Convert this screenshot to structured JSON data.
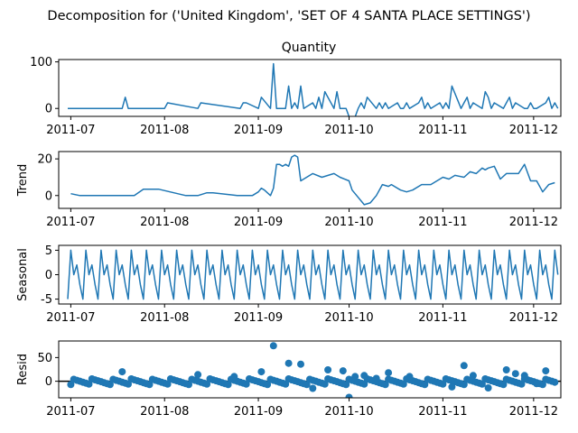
{
  "suptitle": "Decomposition for ('United Kingdom', 'SET OF 4 SANTA PLACE SETTINGS')",
  "x_tick_labels": [
    "2011-07",
    "2011-08",
    "2011-09",
    "2011-10",
    "2011-11",
    "2011-12"
  ],
  "series_color": "#1f77b4",
  "chart_data": [
    {
      "type": "line",
      "title": "Quantity",
      "ylabel": "",
      "ylim": [
        -17,
        105
      ],
      "yticks": [
        0,
        100
      ],
      "x": [
        "2011-06-30",
        "2011-07-18",
        "2011-07-19",
        "2011-07-20",
        "2011-08-01",
        "2011-08-02",
        "2011-08-12",
        "2011-08-13",
        "2011-08-26",
        "2011-08-27",
        "2011-08-28",
        "2011-09-01",
        "2011-09-02",
        "2011-09-05",
        "2011-09-06",
        "2011-09-07",
        "2011-09-10",
        "2011-09-11",
        "2011-09-12",
        "2011-09-13",
        "2011-09-14",
        "2011-09-15",
        "2011-09-16",
        "2011-09-19",
        "2011-09-20",
        "2011-09-21",
        "2011-09-22",
        "2011-09-23",
        "2011-09-26",
        "2011-09-27",
        "2011-09-28",
        "2011-09-30",
        "2011-10-02",
        "2011-10-04",
        "2011-10-05",
        "2011-10-06",
        "2011-10-07",
        "2011-10-10",
        "2011-10-11",
        "2011-10-12",
        "2011-10-13",
        "2011-10-14",
        "2011-10-17",
        "2011-10-18",
        "2011-10-19",
        "2011-10-20",
        "2011-10-21",
        "2011-10-24",
        "2011-10-25",
        "2011-10-26",
        "2011-10-27",
        "2011-10-28",
        "2011-10-31",
        "2011-11-01",
        "2011-11-02",
        "2011-11-03",
        "2011-11-04",
        "2011-11-07",
        "2011-11-08",
        "2011-11-09",
        "2011-11-10",
        "2011-11-11",
        "2011-11-14",
        "2011-11-15",
        "2011-11-16",
        "2011-11-17",
        "2011-11-18",
        "2011-11-21",
        "2011-11-22",
        "2011-11-23",
        "2011-11-24",
        "2011-11-25",
        "2011-11-28",
        "2011-11-29",
        "2011-11-30",
        "2011-12-01",
        "2011-12-02",
        "2011-12-05",
        "2011-12-06",
        "2011-12-07",
        "2011-12-08",
        "2011-12-09"
      ],
      "y": [
        0,
        0,
        24,
        0,
        0,
        12,
        0,
        12,
        0,
        12,
        12,
        0,
        24,
        0,
        96,
        0,
        0,
        48,
        0,
        12,
        0,
        48,
        0,
        12,
        0,
        24,
        0,
        36,
        0,
        36,
        0,
        0,
        -36,
        0,
        12,
        0,
        24,
        0,
        12,
        0,
        12,
        0,
        12,
        0,
        0,
        12,
        0,
        12,
        24,
        0,
        12,
        0,
        12,
        0,
        12,
        0,
        48,
        0,
        12,
        24,
        0,
        12,
        0,
        36,
        24,
        0,
        12,
        0,
        12,
        24,
        0,
        12,
        0,
        0,
        12,
        0,
        0,
        12,
        24,
        0,
        12,
        0
      ]
    },
    {
      "type": "line",
      "title": "",
      "ylabel": "Trend",
      "ylim": [
        -7,
        24
      ],
      "yticks": [
        0,
        20
      ],
      "x": [
        "2011-07-01",
        "2011-07-04",
        "2011-07-12",
        "2011-07-14",
        "2011-07-22",
        "2011-07-25",
        "2011-07-26",
        "2011-07-30",
        "2011-08-08",
        "2011-08-12",
        "2011-08-15",
        "2011-08-16",
        "2011-08-17",
        "2011-08-25",
        "2011-08-30",
        "2011-09-01",
        "2011-09-02",
        "2011-09-03",
        "2011-09-05",
        "2011-09-06",
        "2011-09-07",
        "2011-09-08",
        "2011-09-09",
        "2011-09-10",
        "2011-09-11",
        "2011-09-12",
        "2011-09-13",
        "2011-09-14",
        "2011-09-15",
        "2011-09-19",
        "2011-09-22",
        "2011-09-26",
        "2011-09-28",
        "2011-10-01",
        "2011-10-02",
        "2011-10-03",
        "2011-10-06",
        "2011-10-08",
        "2011-10-10",
        "2011-10-12",
        "2011-10-14",
        "2011-10-15",
        "2011-10-18",
        "2011-10-20",
        "2011-10-22",
        "2011-10-25",
        "2011-10-28",
        "2011-11-01",
        "2011-11-03",
        "2011-11-05",
        "2011-11-08",
        "2011-11-10",
        "2011-11-12",
        "2011-11-14",
        "2011-11-15",
        "2011-11-16",
        "2011-11-18",
        "2011-11-20",
        "2011-11-22",
        "2011-11-24",
        "2011-11-26",
        "2011-11-28",
        "2011-11-30",
        "2011-12-02",
        "2011-12-04",
        "2011-12-06",
        "2011-12-08"
      ],
      "y": [
        1,
        0,
        0,
        0,
        0,
        3.5,
        3.5,
        3.5,
        0,
        0,
        1.5,
        1.5,
        1.5,
        0,
        0,
        2,
        4,
        3,
        0,
        4,
        17,
        17,
        16,
        17,
        16,
        21,
        22,
        21,
        8,
        12,
        10,
        12,
        10,
        8,
        3,
        1,
        -5,
        -4,
        0,
        6,
        5,
        6,
        3,
        2,
        3,
        6,
        6,
        10,
        9,
        11,
        10,
        13,
        12,
        15,
        14,
        15,
        16,
        9,
        12,
        12,
        12,
        17,
        8,
        8,
        2,
        6,
        7
      ]
    },
    {
      "type": "line",
      "title": "",
      "ylabel": "Seasonal",
      "ylim": [
        -6,
        6
      ],
      "yticks": [
        -5,
        0,
        5
      ],
      "period_pattern": [
        -5,
        5,
        0,
        2,
        -2
      ],
      "x_start": "2011-06-30",
      "x_end": "2011-12-09"
    },
    {
      "type": "scatter",
      "title": "",
      "ylabel": "Resid",
      "ylim": [
        -35,
        85
      ],
      "yticks": [
        0,
        50
      ],
      "x": [
        "2011-07-18",
        "2011-08-12",
        "2011-08-24",
        "2011-09-02",
        "2011-09-06",
        "2011-09-11",
        "2011-09-15",
        "2011-09-19",
        "2011-09-24",
        "2011-09-29",
        "2011-10-01",
        "2011-10-03",
        "2011-10-06",
        "2011-10-10",
        "2011-10-14",
        "2011-10-21",
        "2011-11-04",
        "2011-11-08",
        "2011-11-11",
        "2011-11-16",
        "2011-11-22",
        "2011-11-25",
        "2011-11-28",
        "2011-12-02",
        "2011-12-05"
      ],
      "y": [
        20,
        14,
        10,
        20,
        75,
        38,
        36,
        -15,
        24,
        22,
        -34,
        10,
        12,
        6,
        18,
        10,
        -12,
        33,
        12,
        -14,
        24,
        16,
        12,
        -5,
        22
      ]
    }
  ]
}
